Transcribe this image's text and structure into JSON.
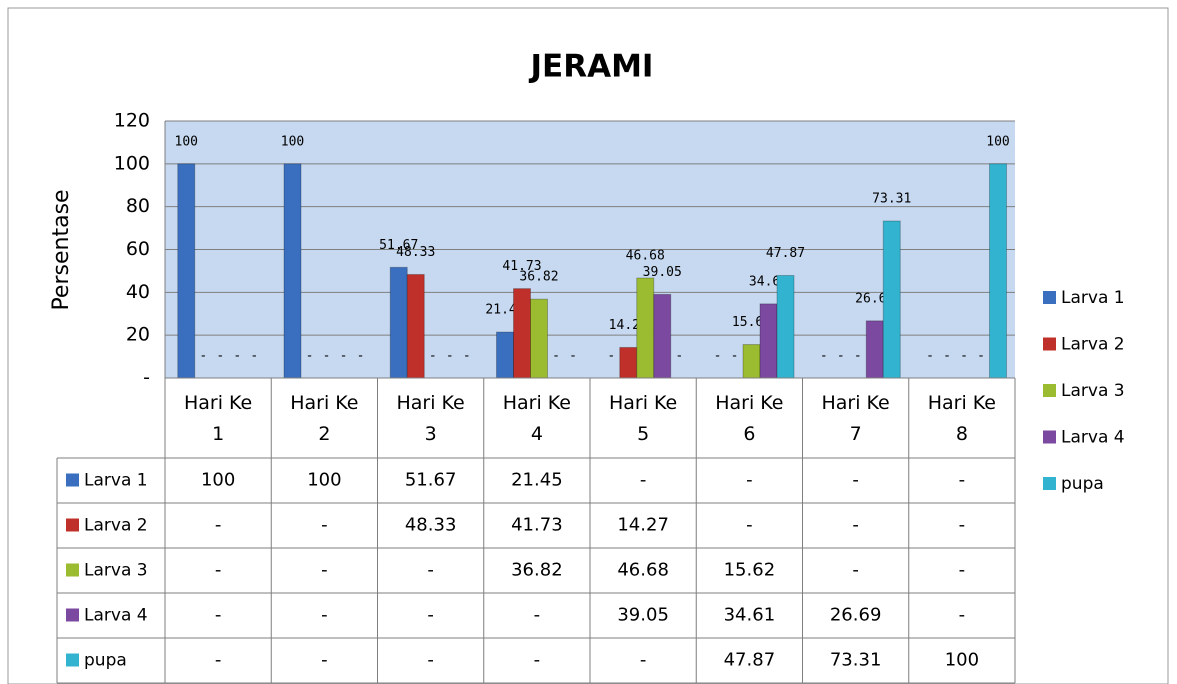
{
  "chart_data": {
    "type": "bar",
    "title": "JERAMI",
    "y_label": "Persentase",
    "categories": [
      "Hari Ke 1",
      "Hari Ke 2",
      "Hari Ke 3",
      "Hari Ke 4",
      "Hari Ke 5",
      "Hari Ke 6",
      "Hari Ke 7",
      "Hari Ke 8"
    ],
    "series": [
      {
        "name": "Larva 1",
        "color": "#3a6fbf",
        "values": [
          100,
          100,
          51.67,
          21.45,
          0,
          0,
          0,
          0
        ],
        "value_labels": [
          "100",
          "100",
          "51.67",
          "21.45",
          "-",
          "-",
          "-",
          "-"
        ]
      },
      {
        "name": "Larva 2",
        "color": "#c0302a",
        "values": [
          0,
          0,
          48.33,
          41.73,
          14.27,
          0,
          0,
          0
        ],
        "value_labels": [
          "-",
          "-",
          "48.33",
          "41.73",
          "14.27",
          "-",
          "-",
          "-"
        ]
      },
      {
        "name": "Larva 3",
        "color": "#9bbb30",
        "values": [
          0,
          0,
          0,
          36.82,
          46.68,
          15.62,
          0,
          0
        ],
        "value_labels": [
          "-",
          "-",
          "-",
          "36.82",
          "46.68",
          "15.62",
          "-",
          "-"
        ]
      },
      {
        "name": "Larva 4",
        "color": "#7b4aa0",
        "values": [
          0,
          0,
          0,
          0,
          39.05,
          34.61,
          26.69,
          0
        ],
        "value_labels": [
          "-",
          "-",
          "-",
          "-",
          "39.05",
          "34.61",
          "26.69",
          "-"
        ]
      },
      {
        "name": "pupa",
        "color": "#32b4d0",
        "values": [
          0,
          0,
          0,
          0,
          0,
          47.87,
          73.31,
          100
        ],
        "value_labels": [
          "-",
          "-",
          "-",
          "-",
          "-",
          "47.87",
          "73.31",
          "100"
        ]
      }
    ],
    "ylim": [
      0,
      120
    ],
    "yticks": [
      {
        "value": 0,
        "label": "-"
      },
      20,
      40,
      60,
      80,
      100,
      120
    ],
    "grid": true,
    "legend": "right",
    "data_table": true
  }
}
